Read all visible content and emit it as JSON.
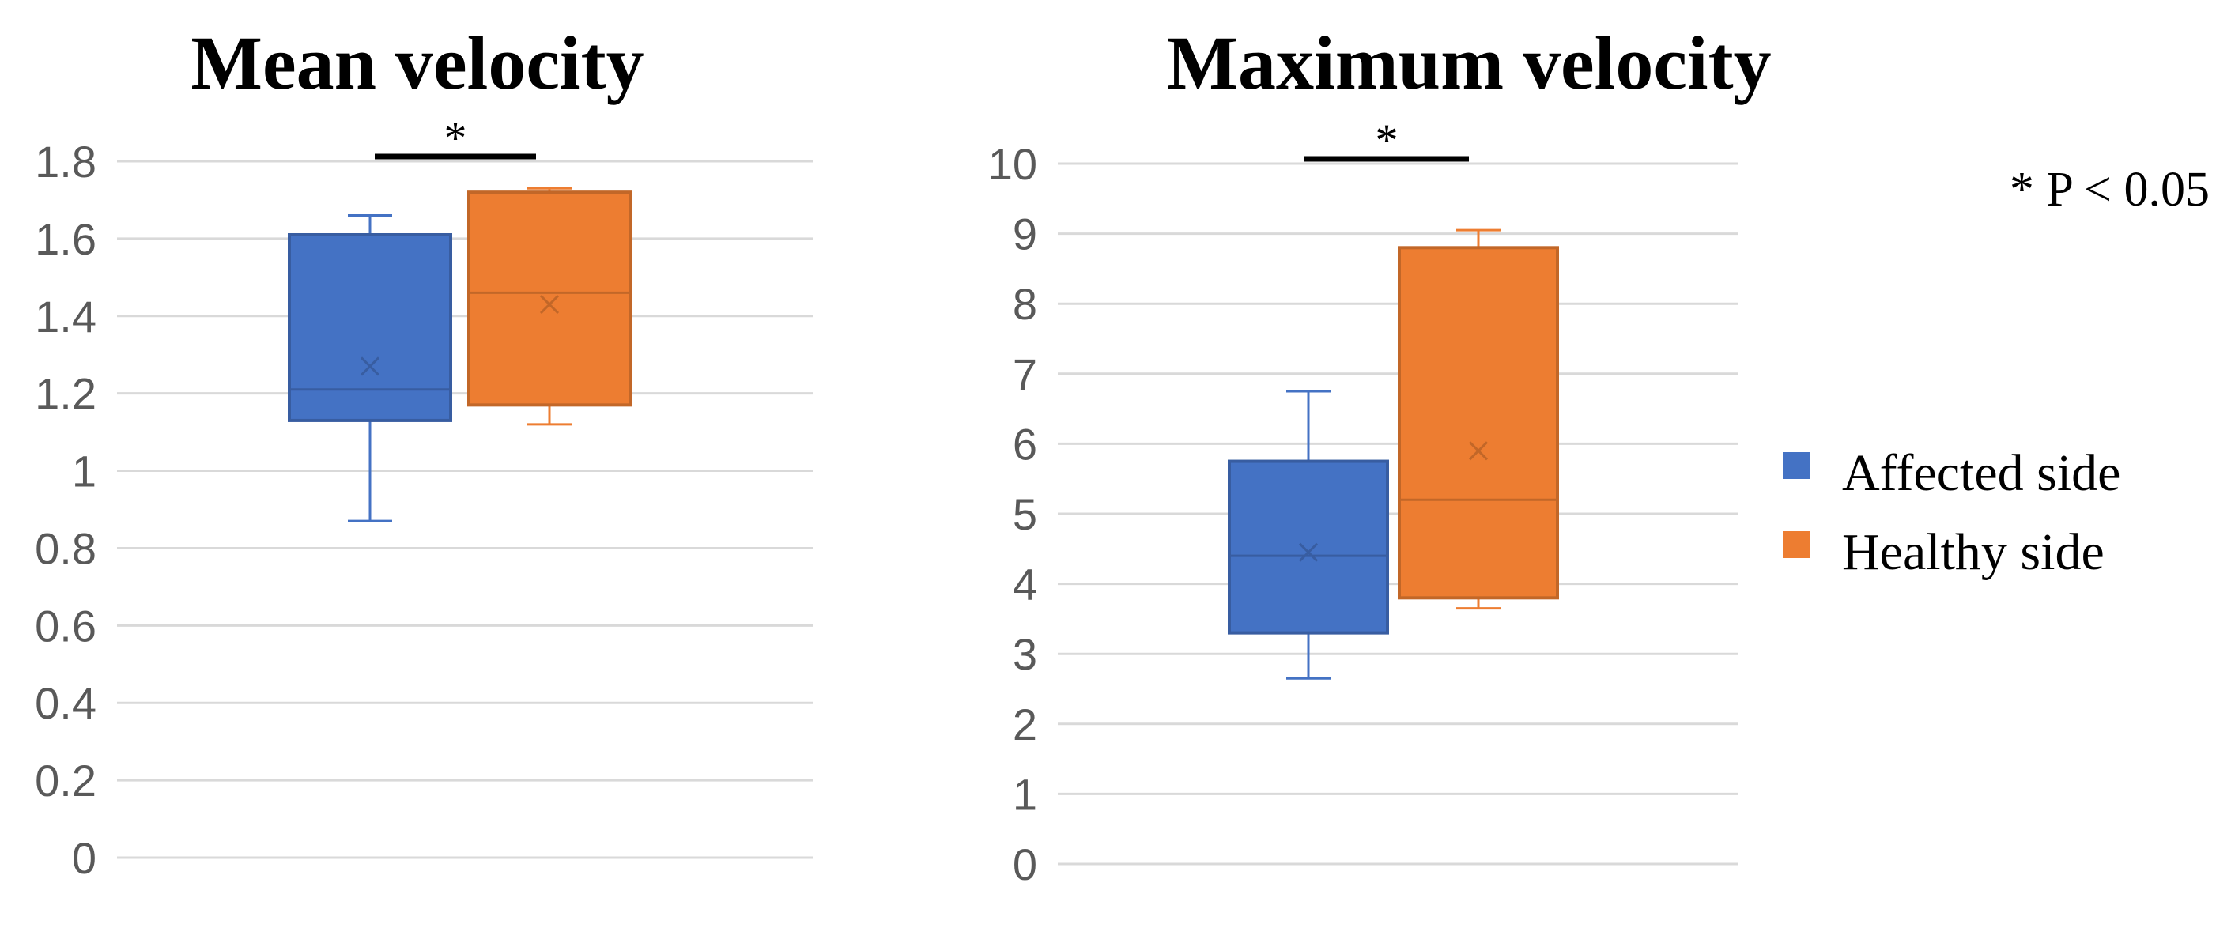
{
  "annotation": "* P < 0.05",
  "legend": {
    "items": [
      {
        "label": "Affected side",
        "color": "#4472C4"
      },
      {
        "label": "Healthy side",
        "color": "#ED7D31"
      }
    ]
  },
  "chart_data": [
    {
      "type": "box",
      "title": "Mean velocity",
      "xlabel": "",
      "ylabel": "",
      "ylim": [
        0,
        1.8
      ],
      "yticks": [
        "0",
        "0.2",
        "0.4",
        "0.6",
        "0.8",
        "1",
        "1.2",
        "1.4",
        "1.6",
        "1.8"
      ],
      "grid": true,
      "significance": "*",
      "series": [
        {
          "name": "Affected side",
          "color": "#4472C4",
          "min": 0.87,
          "q1": 1.13,
          "median": 1.21,
          "q3": 1.61,
          "max": 1.66,
          "mean": 1.27
        },
        {
          "name": "Healthy side",
          "color": "#ED7D31",
          "min": 1.12,
          "q1": 1.17,
          "median": 1.46,
          "q3": 1.72,
          "max": 1.73,
          "mean": 1.43
        }
      ]
    },
    {
      "type": "box",
      "title": "Maximum velocity",
      "xlabel": "",
      "ylabel": "",
      "ylim": [
        0,
        10
      ],
      "yticks": [
        "0",
        "1",
        "2",
        "3",
        "4",
        "5",
        "6",
        "7",
        "8",
        "9",
        "10"
      ],
      "grid": true,
      "significance": "*",
      "series": [
        {
          "name": "Affected side",
          "color": "#4472C4",
          "min": 2.65,
          "q1": 3.3,
          "median": 4.4,
          "q3": 5.75,
          "max": 6.75,
          "mean": 4.45
        },
        {
          "name": "Healthy side",
          "color": "#ED7D31",
          "min": 3.65,
          "q1": 3.8,
          "median": 5.2,
          "q3": 8.8,
          "max": 9.05,
          "mean": 5.9
        }
      ]
    }
  ]
}
